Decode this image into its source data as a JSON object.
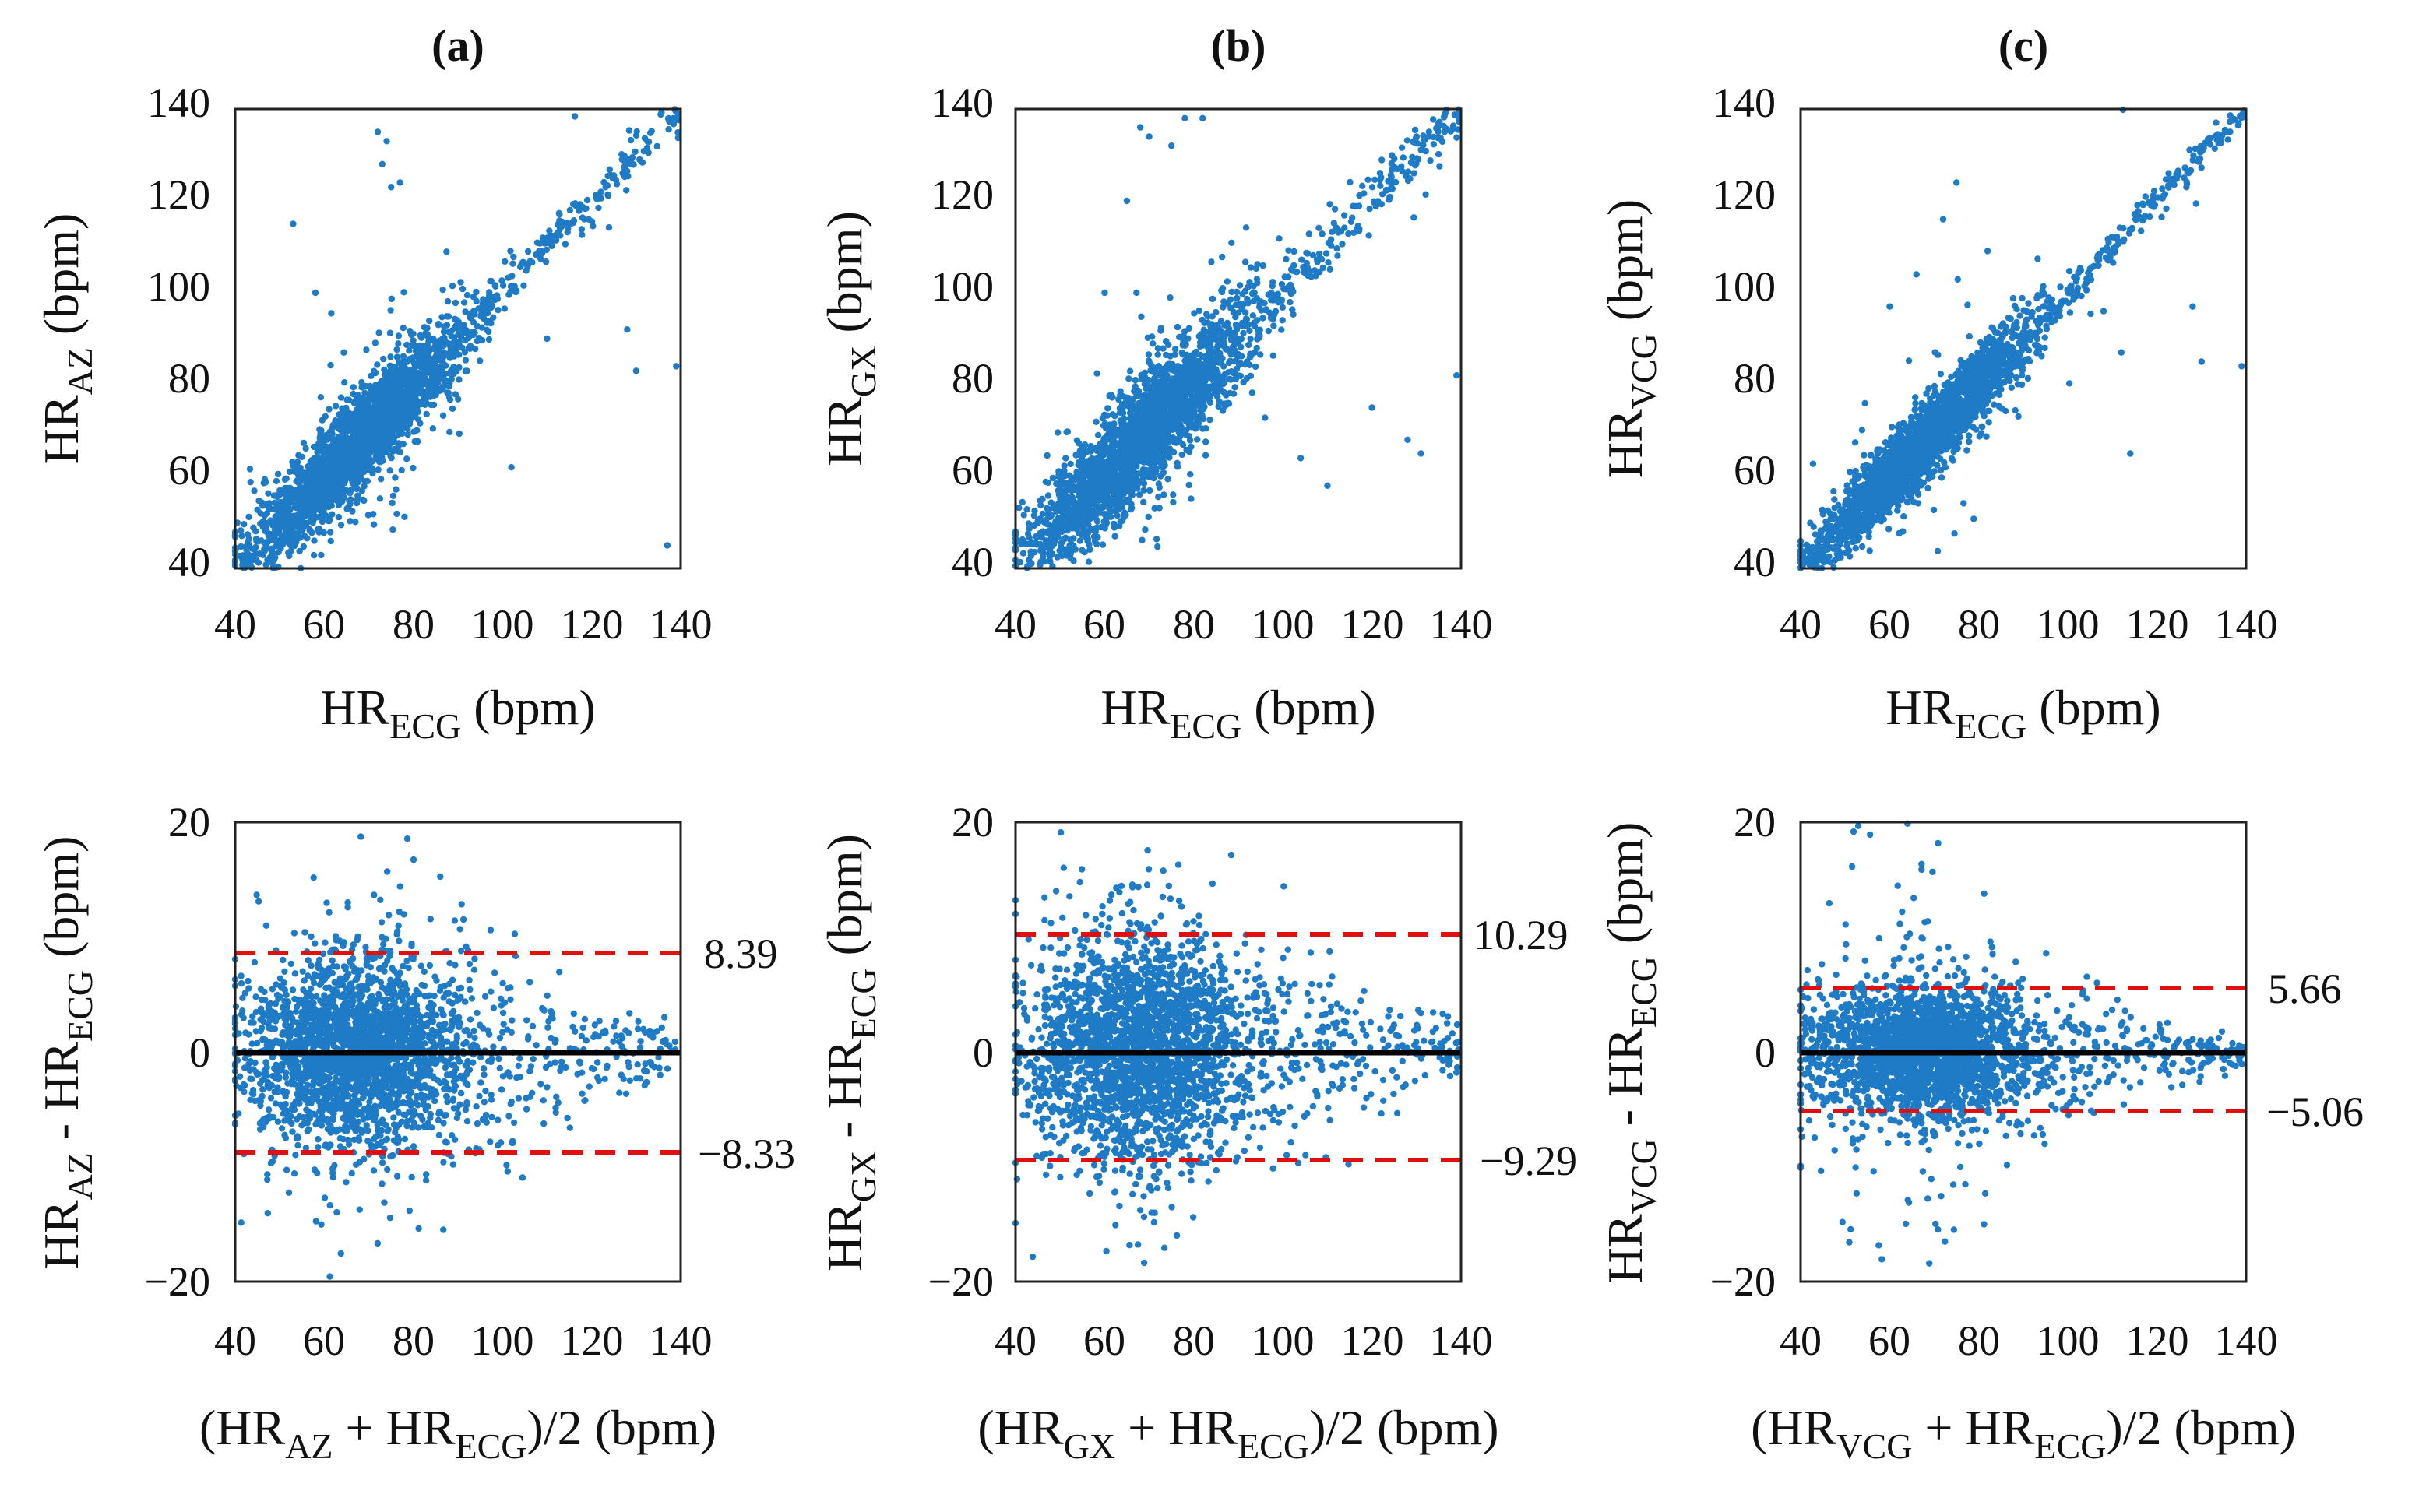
{
  "colors": {
    "points": "#1f7bc6",
    "mean_line": "#000000",
    "loa_line": "#e01010",
    "axes": "#222222"
  },
  "chart_data": [
    {
      "panel": "(a)",
      "type": "scatter",
      "title": "(a)",
      "xlabel": {
        "base": "HR",
        "sub": "ECG",
        "unit": " (bpm)"
      },
      "ylabel": {
        "base": "HR",
        "sub": "AZ",
        "unit": " (bpm)"
      },
      "xlim": [
        40,
        140
      ],
      "ylim": [
        40,
        140
      ],
      "xticks": [
        "40",
        "60",
        "80",
        "100",
        "120",
        "140"
      ],
      "yticks": [
        "40",
        "60",
        "80",
        "100",
        "120",
        "140"
      ],
      "scatter": {
        "center_line": "identity",
        "n_points": 2600,
        "spread": 3.6,
        "outlier_fraction": 0.05
      },
      "outlier_points": [
        [
          72,
          135
        ],
        [
          74,
          133
        ],
        [
          75,
          123
        ],
        [
          73,
          128
        ],
        [
          77,
          124
        ],
        [
          102,
          62
        ],
        [
          110,
          90
        ],
        [
          128,
          92
        ],
        [
          130,
          83
        ],
        [
          139,
          84
        ],
        [
          137,
          45
        ],
        [
          53,
          115
        ],
        [
          58,
          100
        ]
      ]
    },
    {
      "panel": "(b)",
      "type": "scatter",
      "title": "(b)",
      "xlabel": {
        "base": "HR",
        "sub": "ECG",
        "unit": " (bpm)"
      },
      "ylabel": {
        "base": "HR",
        "sub": "GX",
        "unit": " (bpm)"
      },
      "xlim": [
        40,
        140
      ],
      "ylim": [
        40,
        140
      ],
      "xticks": [
        "40",
        "60",
        "80",
        "100",
        "120",
        "140"
      ],
      "yticks": [
        "40",
        "60",
        "80",
        "100",
        "120",
        "140"
      ],
      "scatter": {
        "center_line": "identity",
        "n_points": 2600,
        "spread": 4.4,
        "outlier_fraction": 0.06
      },
      "outlier_points": [
        [
          68,
          136
        ],
        [
          70,
          134
        ],
        [
          78,
          138
        ],
        [
          82,
          138
        ],
        [
          75,
          132
        ],
        [
          104,
          64
        ],
        [
          110,
          58
        ],
        [
          120,
          75
        ],
        [
          128,
          68
        ],
        [
          131,
          65
        ],
        [
          139,
          82
        ],
        [
          65,
          120
        ],
        [
          60,
          100
        ]
      ]
    },
    {
      "panel": "(c)",
      "type": "scatter",
      "title": "(c)",
      "xlabel": {
        "base": "HR",
        "sub": "ECG",
        "unit": " (bpm)"
      },
      "ylabel": {
        "base": "HR",
        "sub": "VCG",
        "unit": " (bpm)"
      },
      "xlim": [
        40,
        140
      ],
      "ylim": [
        40,
        140
      ],
      "xticks": [
        "40",
        "60",
        "80",
        "100",
        "120",
        "140"
      ],
      "yticks": [
        "40",
        "60",
        "80",
        "100",
        "120",
        "140"
      ],
      "scatter": {
        "center_line": "identity",
        "n_points": 2600,
        "spread": 2.9,
        "outlier_fraction": 0.04
      },
      "outlier_points": [
        [
          75,
          124
        ],
        [
          72,
          116
        ],
        [
          108,
          96
        ],
        [
          112,
          87
        ],
        [
          114,
          65
        ],
        [
          128,
          97
        ],
        [
          130,
          85
        ],
        [
          139,
          84
        ],
        [
          66,
          104
        ],
        [
          60,
          97
        ]
      ]
    },
    {
      "panel": "(a) Bland-Altman",
      "type": "scatter",
      "xlabel": {
        "lead": "(HR",
        "sub1": "AZ",
        "mid": " + HR",
        "sub2": "ECG",
        "tail": ")/2 (bpm)"
      },
      "ylabel": {
        "b1": "HR",
        "s1": "AZ",
        "m": " - HR",
        "s2": "ECG",
        "t": " (bpm)"
      },
      "xlim": [
        40,
        140
      ],
      "ylim": [
        -20,
        20
      ],
      "xticks": [
        "40",
        "60",
        "80",
        "100",
        "120",
        "140"
      ],
      "yticks": [
        "20",
        "0",
        "−20"
      ],
      "mean_difference": 0,
      "loa_upper": 8.39,
      "loa_lower": -8.33,
      "loa_upper_label": "8.39",
      "loa_lower_label": "−8.33",
      "scatter": {
        "n_points": 2600,
        "spread": 3.2,
        "outlier_fraction": 0.07
      }
    },
    {
      "panel": "(b) Bland-Altman",
      "type": "scatter",
      "xlabel": {
        "lead": "(HR",
        "sub1": "GX",
        "mid": " + HR",
        "sub2": "ECG",
        "tail": ")/2 (bpm)"
      },
      "ylabel": {
        "b1": "HR",
        "s1": "GX",
        "m": " - HR",
        "s2": "ECG",
        "t": " (bpm)"
      },
      "xlim": [
        40,
        140
      ],
      "ylim": [
        -20,
        20
      ],
      "xticks": [
        "40",
        "60",
        "80",
        "100",
        "120",
        "140"
      ],
      "yticks": [
        "20",
        "0",
        "−20"
      ],
      "mean_difference": 0,
      "loa_upper": 10.29,
      "loa_lower": -9.29,
      "loa_upper_label": "10.29",
      "loa_lower_label": "−9.29",
      "scatter": {
        "n_points": 2600,
        "spread": 3.9,
        "outlier_fraction": 0.08
      }
    },
    {
      "panel": "(c) Bland-Altman",
      "type": "scatter",
      "xlabel": {
        "lead": "(HR",
        "sub1": "VCG",
        "mid": " + HR",
        "sub2": "ECG",
        "tail": ")/2 (bpm)"
      },
      "ylabel": {
        "b1": "HR",
        "s1": "VCG",
        "m": " - HR",
        "s2": "ECG",
        "t": " (bpm)"
      },
      "xlim": [
        40,
        140
      ],
      "ylim": [
        -20,
        20
      ],
      "xticks": [
        "40",
        "60",
        "80",
        "100",
        "120",
        "140"
      ],
      "yticks": [
        "20",
        "0",
        "−20"
      ],
      "mean_difference": 0,
      "loa_upper": 5.66,
      "loa_lower": -5.06,
      "loa_upper_label": "5.66",
      "loa_lower_label": "−5.06",
      "scatter": {
        "n_points": 2600,
        "spread": 2.3,
        "outlier_fraction": 0.08
      }
    }
  ]
}
